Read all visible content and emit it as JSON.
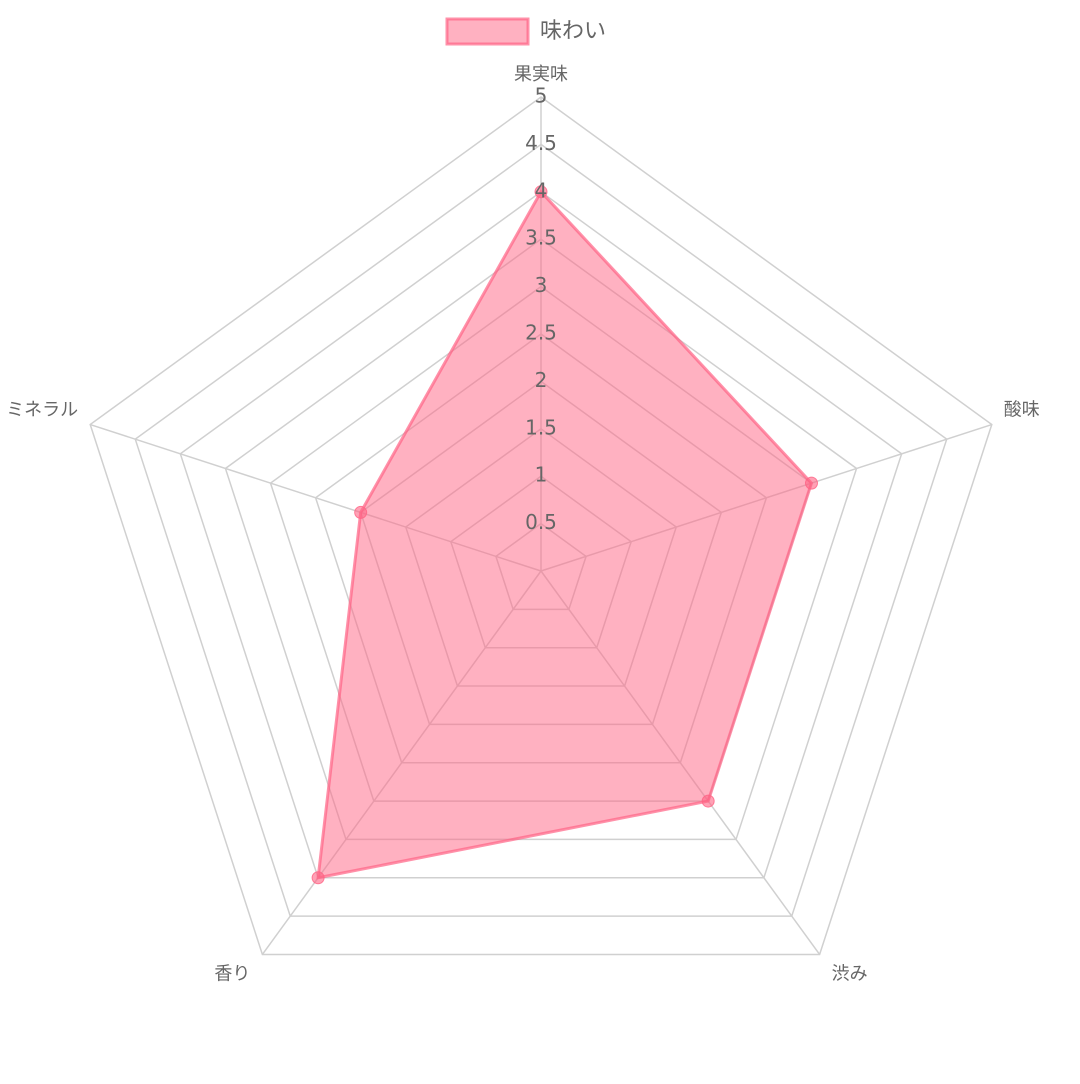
{
  "chart_data": {
    "type": "radar",
    "categories": [
      "果実味",
      "酸味",
      "渋み",
      "香り",
      "ミネラル"
    ],
    "series": [
      {
        "name": "味わい",
        "color": "#ff6384",
        "values": [
          4,
          3,
          3,
          4,
          2
        ]
      }
    ],
    "ylim": [
      0,
      5
    ],
    "yticks": [
      0.5,
      1,
      1.5,
      2,
      2.5,
      3,
      3.5,
      4,
      4.5,
      5
    ],
    "grid": true,
    "legend": "top"
  }
}
